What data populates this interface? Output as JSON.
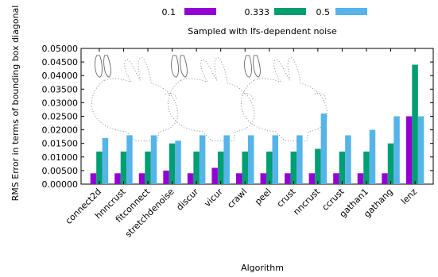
{
  "chart_data": {
    "type": "bar",
    "title": "Sampled with lfs-dependent noise",
    "xlabel": "Algorithm",
    "ylabel": "RMS Error in terms of bounding box diagonal",
    "ylim": [
      0,
      0.05
    ],
    "yticks": [
      "0.00000",
      "0.00500",
      "0.01000",
      "0.01500",
      "0.02000",
      "0.02500",
      "0.03000",
      "0.03500",
      "0.04000",
      "0.04500",
      "0.05000"
    ],
    "categories": [
      "connect2d",
      "hnncrust",
      "fitconnect",
      "stretchdenoise",
      "discur",
      "vicur",
      "crawl",
      "peel",
      "crust",
      "nncrust",
      "ccrust",
      "gathan1",
      "gathang",
      "lenz"
    ],
    "series": [
      {
        "name": "0.1",
        "color": "#9400d3",
        "values": [
          0.004,
          0.004,
          0.004,
          0.005,
          0.004,
          0.006,
          0.004,
          0.004,
          0.004,
          0.004,
          0.004,
          0.004,
          0.004,
          0.025
        ]
      },
      {
        "name": "0.333",
        "color": "#009e73",
        "values": [
          0.012,
          0.012,
          0.012,
          0.015,
          0.012,
          0.012,
          0.012,
          0.012,
          0.012,
          0.013,
          0.012,
          0.012,
          0.015,
          0.044
        ]
      },
      {
        "name": "0.5",
        "color": "#56b4e9",
        "values": [
          0.017,
          0.018,
          0.018,
          0.016,
          0.018,
          0.018,
          0.018,
          0.018,
          0.018,
          0.026,
          0.018,
          0.02,
          0.025,
          0.025
        ]
      }
    ],
    "legend_position": "top",
    "grid": false,
    "background_images": [
      "bunny-outline-1",
      "bunny-outline-2",
      "bunny-outline-3"
    ]
  }
}
